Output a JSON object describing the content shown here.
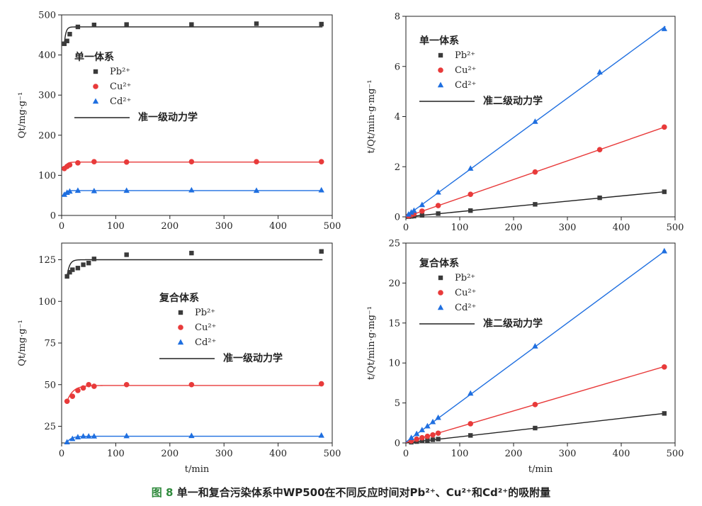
{
  "figure_caption": {
    "label": "图 8",
    "text": "单一和复合污染体系中WP500在不同反应时间对Pb²⁺、Cu²⁺和Cd²⁺的吸附量"
  },
  "chart_data": [
    {
      "type": "scatter",
      "id": "p1",
      "title": "",
      "group_label": "单一体系",
      "xlabel": "",
      "ylabel": "Qt/mg·g⁻¹",
      "xlim": [
        0,
        500
      ],
      "ylim": [
        0,
        500
      ],
      "xticks": [
        0,
        100,
        200,
        300,
        400,
        500
      ],
      "yticks": [
        0,
        100,
        200,
        300,
        400,
        500
      ],
      "fit_label": "准一级动力学",
      "series": [
        {
          "name": "Pb²⁺",
          "marker": "square",
          "color": "#3a3a3a",
          "line_color": "#222222",
          "x": [
            5,
            10,
            15,
            30,
            60,
            120,
            240,
            360,
            480
          ],
          "y": [
            428,
            435,
            452,
            470,
            475,
            476,
            476,
            478,
            477
          ],
          "fit": {
            "model": "pfo",
            "qe": 470,
            "k": 0.35
          }
        },
        {
          "name": "Cu²⁺",
          "marker": "circle",
          "color": "#e83a3a",
          "line_color": "#e83a3a",
          "x": [
            5,
            10,
            15,
            30,
            60,
            120,
            240,
            360,
            480
          ],
          "y": [
            117,
            122,
            126,
            131,
            134,
            133,
            134,
            134,
            134
          ],
          "fit": {
            "model": "pfo",
            "qe": 133,
            "k": 0.25
          }
        },
        {
          "name": "Cd²⁺",
          "marker": "triangle",
          "color": "#1f6fe0",
          "line_color": "#1f6fe0",
          "x": [
            5,
            10,
            15,
            30,
            60,
            120,
            240,
            360,
            480
          ],
          "y": [
            52,
            57,
            60,
            62,
            61,
            62,
            63,
            62,
            63
          ],
          "fit": {
            "model": "pfo",
            "qe": 62,
            "k": 0.3
          }
        }
      ]
    },
    {
      "type": "scatter",
      "id": "p2",
      "title": "",
      "group_label": "单一体系",
      "xlabel": "",
      "ylabel": "t/Qt/min·g·mg⁻¹",
      "xlim": [
        0,
        500
      ],
      "ylim": [
        0,
        8
      ],
      "xticks": [
        0,
        100,
        200,
        300,
        400,
        500
      ],
      "yticks": [
        0,
        2,
        4,
        6,
        8
      ],
      "fit_label": "准二级动力学",
      "series": [
        {
          "name": "Pb²⁺",
          "marker": "square",
          "color": "#3a3a3a",
          "line_color": "#222222",
          "x": [
            5,
            10,
            15,
            30,
            60,
            120,
            240,
            360,
            480
          ],
          "y": [
            0.01,
            0.02,
            0.03,
            0.06,
            0.13,
            0.25,
            0.5,
            0.76,
            1.0
          ],
          "fit": {
            "model": "linear",
            "slope": 0.002083,
            "intercept": 0
          }
        },
        {
          "name": "Cu²⁺",
          "marker": "circle",
          "color": "#e83a3a",
          "line_color": "#e83a3a",
          "x": [
            5,
            10,
            15,
            30,
            60,
            120,
            240,
            360,
            480
          ],
          "y": [
            0.04,
            0.08,
            0.12,
            0.23,
            0.45,
            0.9,
            1.79,
            2.68,
            3.58
          ],
          "fit": {
            "model": "linear",
            "slope": 0.00745,
            "intercept": 0
          }
        },
        {
          "name": "Cd²⁺",
          "marker": "triangle",
          "color": "#1f6fe0",
          "line_color": "#1f6fe0",
          "x": [
            5,
            10,
            15,
            30,
            60,
            120,
            240,
            360,
            480
          ],
          "y": [
            0.1,
            0.18,
            0.25,
            0.48,
            0.98,
            1.93,
            3.8,
            5.77,
            7.5
          ],
          "fit": {
            "model": "linear",
            "slope": 0.01572,
            "intercept": 0.02
          }
        }
      ]
    },
    {
      "type": "scatter",
      "id": "p3",
      "title": "",
      "group_label": "复合体系",
      "xlabel": "t/min",
      "ylabel": "Qt/mg·g⁻¹",
      "xlim": [
        0,
        500
      ],
      "ylim": [
        15,
        135
      ],
      "xticks": [
        0,
        100,
        200,
        300,
        400,
        500
      ],
      "yticks": [
        25,
        50,
        75,
        100,
        125
      ],
      "fit_label": "准一级动力学",
      "series": [
        {
          "name": "Pb²⁺",
          "marker": "square",
          "color": "#3a3a3a",
          "line_color": "#222222",
          "x": [
            10,
            15,
            20,
            30,
            40,
            50,
            60,
            120,
            240,
            480
          ],
          "y": [
            115,
            117.5,
            119,
            120,
            122,
            123,
            125.5,
            128,
            129,
            130
          ],
          "fit": {
            "model": "pfo",
            "qe": 125,
            "k": 0.22
          }
        },
        {
          "name": "Cu²⁺",
          "marker": "circle",
          "color": "#e83a3a",
          "line_color": "#e83a3a",
          "x": [
            10,
            20,
            30,
            40,
            50,
            60,
            120,
            240,
            480
          ],
          "y": [
            40,
            43,
            46.5,
            48,
            50,
            49,
            50,
            50,
            50.5
          ],
          "fit": {
            "model": "pfo",
            "qe": 49.5,
            "k": 0.09
          }
        },
        {
          "name": "Cd²⁺",
          "marker": "triangle",
          "color": "#1f6fe0",
          "line_color": "#1f6fe0",
          "x": [
            10,
            20,
            30,
            40,
            50,
            60,
            120,
            240,
            480
          ],
          "y": [
            15.5,
            17.5,
            18.5,
            19,
            19,
            19,
            19.2,
            19.3,
            19.5
          ],
          "fit": {
            "model": "pfo",
            "qe": 19,
            "k": 0.12
          }
        }
      ]
    },
    {
      "type": "scatter",
      "id": "p4",
      "title": "",
      "group_label": "复合体系",
      "xlabel": "t/min",
      "ylabel": "t/Qt/min·g·mg⁻¹",
      "xlim": [
        0,
        500
      ],
      "ylim": [
        0,
        25
      ],
      "xticks": [
        0,
        100,
        200,
        300,
        400,
        500
      ],
      "yticks": [
        0,
        5,
        10,
        15,
        20,
        25
      ],
      "fit_label": "准二级动力学",
      "series": [
        {
          "name": "Pb²⁺",
          "marker": "square",
          "color": "#3a3a3a",
          "line_color": "#222222",
          "x": [
            10,
            20,
            30,
            40,
            50,
            60,
            120,
            240,
            480
          ],
          "y": [
            0.09,
            0.17,
            0.25,
            0.33,
            0.4,
            0.48,
            0.94,
            1.86,
            3.69
          ],
          "fit": {
            "model": "linear",
            "slope": 0.0077,
            "intercept": 0
          }
        },
        {
          "name": "Cu²⁺",
          "marker": "circle",
          "color": "#e83a3a",
          "line_color": "#e83a3a",
          "x": [
            10,
            20,
            30,
            40,
            50,
            60,
            120,
            240,
            480
          ],
          "y": [
            0.25,
            0.47,
            0.65,
            0.83,
            1.0,
            1.22,
            2.4,
            4.8,
            9.5
          ],
          "fit": {
            "model": "linear",
            "slope": 0.0198,
            "intercept": 0.05
          }
        },
        {
          "name": "Cd²⁺",
          "marker": "triangle",
          "color": "#1f6fe0",
          "line_color": "#1f6fe0",
          "x": [
            10,
            20,
            30,
            40,
            50,
            60,
            120,
            240,
            480
          ],
          "y": [
            0.64,
            1.14,
            1.62,
            2.1,
            2.63,
            3.16,
            6.2,
            12.1,
            24.0
          ],
          "fit": {
            "model": "linear",
            "slope": 0.0497,
            "intercept": 0.1
          }
        }
      ]
    }
  ]
}
